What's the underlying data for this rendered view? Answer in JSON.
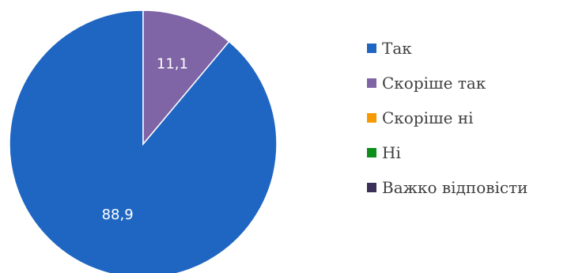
{
  "chart_data": {
    "type": "pie",
    "categories": [
      "Так",
      "Скоріше так",
      "Скоріше ні",
      "Ні",
      "Важко відповісти"
    ],
    "values": [
      88.9,
      11.1,
      0,
      0,
      0
    ],
    "data_labels": [
      "88,9",
      "11,1",
      "",
      "",
      ""
    ],
    "colors": [
      "#1f66c2",
      "#7f64a6",
      "#f59a00",
      "#0c8f1a",
      "#3b3158"
    ],
    "legend_position": "right",
    "start_angle": "12 o'clock",
    "direction": "counterclockwise"
  },
  "legend": {
    "items": [
      {
        "label": "Так",
        "color": "#1f66c2"
      },
      {
        "label": "Скоріше так",
        "color": "#7f64a6"
      },
      {
        "label": "Скоріше ні",
        "color": "#f59a00"
      },
      {
        "label": "Ні",
        "color": "#0c8f1a"
      },
      {
        "label": "Важко відповісти",
        "color": "#3b3158"
      }
    ]
  }
}
